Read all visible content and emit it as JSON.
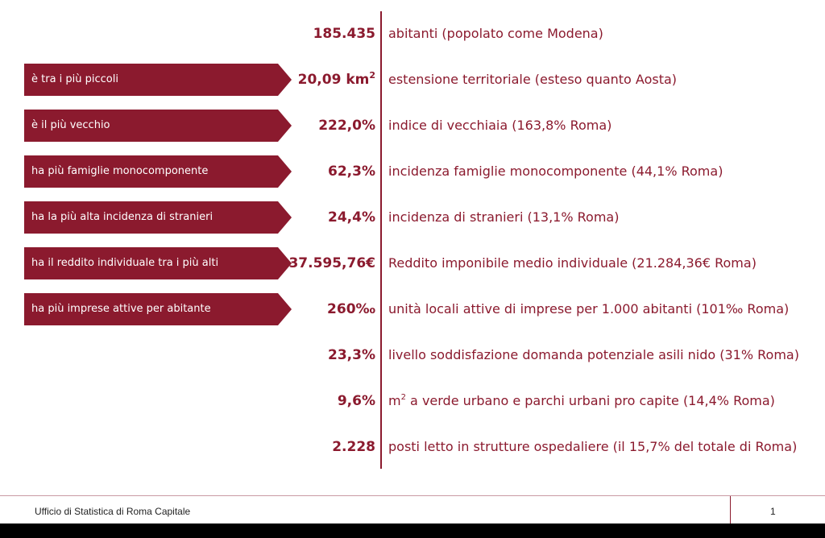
{
  "stats": [
    {
      "value": "185.435",
      "desc": "abitanti (popolato come Modena)",
      "tag": ""
    },
    {
      "value": "20,09 km",
      "value_sup": "2",
      "desc": "estensione territoriale (esteso quanto Aosta)",
      "tag": "è tra i più piccoli"
    },
    {
      "value": "222,0%",
      "desc": "indice di vecchiaia (163,8% Roma)",
      "tag": "è il più vecchio"
    },
    {
      "value": "62,3%",
      "desc": "incidenza famiglie monocomponente (44,1% Roma)",
      "tag": "ha più famiglie monocomponente"
    },
    {
      "value": "24,4%",
      "desc": "incidenza di stranieri (13,1% Roma)",
      "tag": "ha la più alta incidenza di stranieri"
    },
    {
      "value": "37.595,76€",
      "desc": "Reddito imponibile medio  individuale (21.284,36€ Roma)",
      "tag": "ha il reddito individuale tra i più alti"
    },
    {
      "value": "260‰",
      "desc": "unità locali attive di imprese per 1.000 abitanti (101‰ Roma)",
      "tag": "ha più imprese attive per abitante"
    },
    {
      "value": "23,3%",
      "desc": "livello soddisfazione domanda potenziale asili nido (31% Roma)",
      "tag": ""
    },
    {
      "value": "9,6%",
      "desc_prefix": "m",
      "desc_sup": "2",
      "desc": " a verde urbano e parchi urbani pro capite (14,4% Roma)",
      "tag": ""
    },
    {
      "value": "2.228",
      "desc": "posti letto in strutture ospedaliere  (il 15,7% del totale di Roma)",
      "tag": ""
    }
  ],
  "footer": {
    "org": "Ufficio di Statistica di Roma Capitale",
    "page": "1"
  },
  "colors": {
    "accent": "#8b1a2e"
  }
}
